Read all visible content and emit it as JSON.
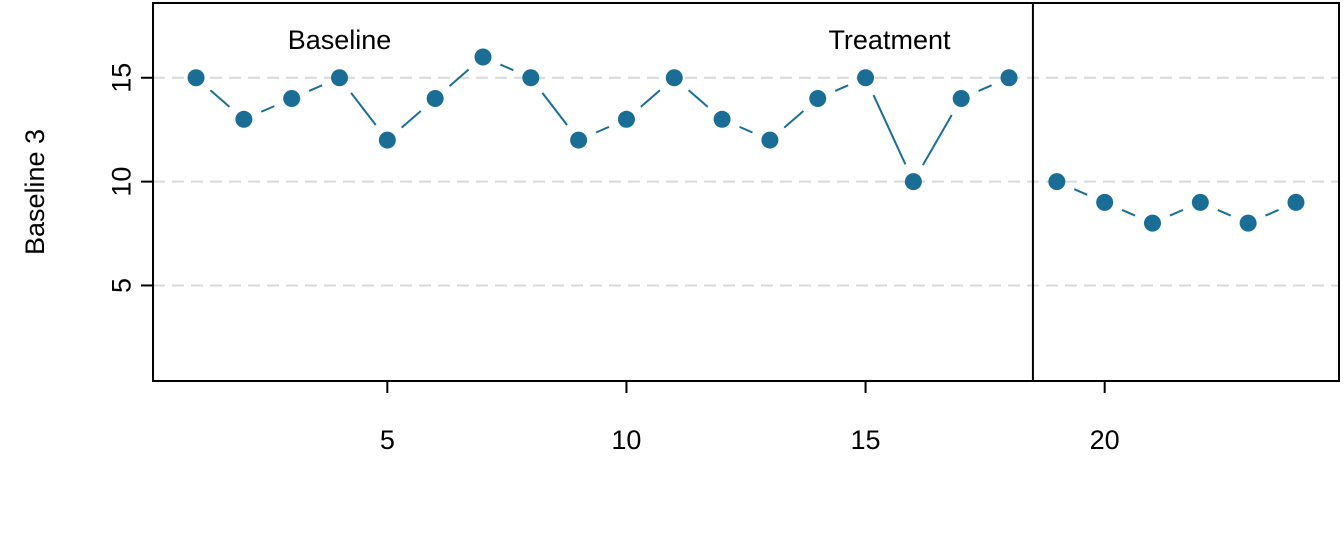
{
  "chart_data": {
    "type": "line",
    "title": "",
    "xlabel": "",
    "ylabel": "Baseline 3",
    "xlim": [
      0.1,
      24.9
    ],
    "ylim": [
      0.4,
      18.6
    ],
    "xticks": [
      5,
      10,
      15,
      20
    ],
    "yticks": [
      5,
      10,
      15
    ],
    "grid": "horizontal-dashed",
    "phase_change_after": 18.5,
    "phases": [
      {
        "name": "Baseline",
        "label_x": 4
      },
      {
        "name": "Treatment",
        "label_x": 15.5
      }
    ],
    "colors": {
      "series": "#1a6e96",
      "grid": "#d9d9d9"
    },
    "series": [
      {
        "phase": "Baseline",
        "x": [
          1,
          2,
          3,
          4,
          5,
          6,
          7,
          8,
          9,
          10,
          11,
          12,
          13,
          14,
          15,
          16,
          17,
          18
        ],
        "y": [
          15,
          13,
          14,
          15,
          12,
          14,
          16,
          15,
          12,
          13,
          15,
          13,
          12,
          14,
          15,
          10,
          14,
          15
        ]
      },
      {
        "phase": "Treatment",
        "x": [
          19,
          20,
          21,
          22,
          23,
          24
        ],
        "y": [
          10,
          9,
          8,
          9,
          8,
          9
        ]
      }
    ]
  }
}
